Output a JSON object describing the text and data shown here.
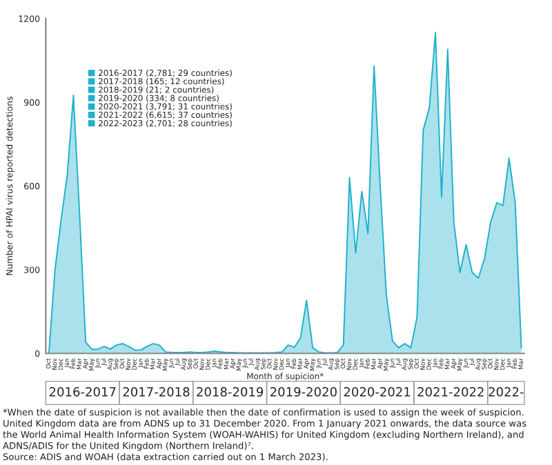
{
  "chart_data": {
    "type": "area",
    "ylabel": "Number of HPAI virus reported detections",
    "xlabel": "Month of supicion*",
    "categories": [
      "Oct",
      "Nov",
      "Dec",
      "Jan",
      "Feb",
      "Mar",
      "Apr",
      "May",
      "Jun",
      "Jul",
      "Aug",
      "Sep",
      "Oct",
      "Nov",
      "Dec",
      "Jan",
      "Feb",
      "Mar",
      "Apr",
      "May",
      "Jun",
      "Jul",
      "Aug",
      "Sep",
      "Oct",
      "Nov",
      "Dec",
      "Jan",
      "Feb",
      "Mar",
      "Apr",
      "May",
      "Jun",
      "Jul",
      "Aug",
      "Sep",
      "Oct",
      "Nov",
      "Dec",
      "Jan",
      "Feb",
      "Mar",
      "Apr",
      "May",
      "Jun",
      "Jul",
      "Aug",
      "Sep",
      "Oct",
      "Nov",
      "Dec",
      "Jan",
      "Feb",
      "Mar",
      "Apr",
      "May",
      "Jun",
      "Jul",
      "Aug",
      "Sep",
      "Oct",
      "Nov",
      "Dec",
      "Jan",
      "Feb",
      "Mar",
      "Apr",
      "May",
      "Jun",
      "Jul",
      "Aug",
      "Sep",
      "Oct",
      "Nov",
      "Dec",
      "Jan",
      "Feb",
      "Mar"
    ],
    "series": [
      {
        "name": "2016-2017 (2,781; 29 countries)",
        "color": "#1fb1cd",
        "values": [
          0,
          300,
          480,
          640,
          925,
          500,
          40,
          15,
          15,
          25,
          15,
          30,
          35,
          null,
          null,
          null,
          null,
          null,
          null,
          null,
          null,
          null,
          null,
          null,
          null,
          null,
          null,
          null,
          null,
          null,
          null,
          null,
          null,
          null,
          null,
          null,
          null,
          null,
          null,
          null,
          null,
          null,
          null,
          null,
          null,
          null,
          null,
          null,
          null,
          null,
          null,
          null,
          null,
          null,
          null,
          null,
          null,
          null,
          null,
          null,
          null,
          null,
          null,
          null,
          null,
          null,
          null,
          null,
          null,
          null,
          null,
          null,
          null,
          null,
          null,
          null,
          null,
          null
        ]
      },
      {
        "name": "2017-2018 (165; 12 countries)",
        "color": "#1fb1cd",
        "values": [
          null,
          null,
          null,
          null,
          null,
          null,
          null,
          null,
          null,
          null,
          null,
          null,
          35,
          25,
          12,
          12,
          25,
          35,
          30,
          5,
          3,
          3,
          3,
          5,
          3,
          null,
          null,
          null,
          null,
          null,
          null,
          null,
          null,
          null,
          null,
          null,
          null,
          null,
          null,
          null,
          null,
          null,
          null,
          null,
          null,
          null,
          null,
          null,
          null,
          null,
          null,
          null,
          null,
          null,
          null,
          null,
          null,
          null,
          null,
          null,
          null,
          null,
          null,
          null,
          null,
          null,
          null,
          null,
          null,
          null,
          null,
          null,
          null,
          null,
          null,
          null,
          null,
          null
        ]
      },
      {
        "name": "2018-2019 (21; 2 countries)",
        "color": "#1fb1cd",
        "values": [
          null,
          null,
          null,
          null,
          null,
          null,
          null,
          null,
          null,
          null,
          null,
          null,
          null,
          null,
          null,
          null,
          null,
          null,
          null,
          null,
          null,
          null,
          null,
          null,
          3,
          3,
          5,
          8,
          5,
          3,
          3,
          2,
          2,
          2,
          2,
          2,
          2,
          null,
          null,
          null,
          null,
          null,
          null,
          null,
          null,
          null,
          null,
          null,
          null,
          null,
          null,
          null,
          null,
          null,
          null,
          null,
          null,
          null,
          null,
          null,
          null,
          null,
          null,
          null,
          null,
          null,
          null,
          null,
          null,
          null,
          null,
          null,
          null,
          null,
          null,
          null,
          null,
          null
        ]
      },
      {
        "name": "2019-2020 (334; 8 countries)",
        "color": "#1fb1cd",
        "values": [
          null,
          null,
          null,
          null,
          null,
          null,
          null,
          null,
          null,
          null,
          null,
          null,
          null,
          null,
          null,
          null,
          null,
          null,
          null,
          null,
          null,
          null,
          null,
          null,
          null,
          null,
          null,
          null,
          null,
          null,
          null,
          null,
          null,
          null,
          null,
          null,
          2,
          3,
          5,
          30,
          22,
          55,
          190,
          20,
          5,
          2,
          2,
          3,
          30,
          null,
          null,
          null,
          null,
          null,
          null,
          null,
          null,
          null,
          null,
          null,
          null,
          null,
          null,
          null,
          null,
          null,
          null,
          null,
          null,
          null,
          null,
          null,
          null,
          null,
          null,
          null,
          null,
          null
        ]
      },
      {
        "name": "2020-2021 (3,791; 31 countries)",
        "color": "#1fb1cd",
        "values": [
          null,
          null,
          null,
          null,
          null,
          null,
          null,
          null,
          null,
          null,
          null,
          null,
          null,
          null,
          null,
          null,
          null,
          null,
          null,
          null,
          null,
          null,
          null,
          null,
          null,
          null,
          null,
          null,
          null,
          null,
          null,
          null,
          null,
          null,
          null,
          null,
          null,
          null,
          null,
          null,
          null,
          null,
          null,
          null,
          null,
          null,
          null,
          null,
          30,
          630,
          360,
          580,
          430,
          1030,
          600,
          210,
          45,
          20,
          35,
          20,
          130,
          null,
          null,
          null,
          null,
          null,
          null,
          null,
          null,
          null,
          null,
          null,
          null,
          null,
          null,
          null,
          null,
          null
        ]
      },
      {
        "name": "2021-2022 (6,615; 37 countries)",
        "color": "#1fb1cd",
        "values": [
          null,
          null,
          null,
          null,
          null,
          null,
          null,
          null,
          null,
          null,
          null,
          null,
          null,
          null,
          null,
          null,
          null,
          null,
          null,
          null,
          null,
          null,
          null,
          null,
          null,
          null,
          null,
          null,
          null,
          null,
          null,
          null,
          null,
          null,
          null,
          null,
          null,
          null,
          null,
          null,
          null,
          null,
          null,
          null,
          null,
          null,
          null,
          null,
          null,
          null,
          null,
          null,
          null,
          null,
          null,
          null,
          null,
          null,
          null,
          null,
          130,
          800,
          880,
          1150,
          560,
          1090,
          470,
          290,
          390,
          290,
          270,
          340,
          470,
          null,
          null,
          null,
          null,
          null
        ]
      },
      {
        "name": "2022-2023 (2,701; 28 countries)",
        "color": "#1fb1cd",
        "values": [
          null,
          null,
          null,
          null,
          null,
          null,
          null,
          null,
          null,
          null,
          null,
          null,
          null,
          null,
          null,
          null,
          null,
          null,
          null,
          null,
          null,
          null,
          null,
          null,
          null,
          null,
          null,
          null,
          null,
          null,
          null,
          null,
          null,
          null,
          null,
          null,
          null,
          null,
          null,
          null,
          null,
          null,
          null,
          null,
          null,
          null,
          null,
          null,
          null,
          null,
          null,
          null,
          null,
          null,
          null,
          null,
          null,
          null,
          null,
          null,
          null,
          null,
          null,
          null,
          null,
          null,
          null,
          null,
          null,
          null,
          null,
          null,
          470,
          540,
          530,
          700,
          540,
          20
        ]
      }
    ],
    "ylim": [
      0,
      1200
    ],
    "yticks": [
      0,
      300,
      600,
      900,
      1200
    ],
    "grid": false,
    "legend": "top left",
    "annotations": [
      "2016-2017",
      "2017-2018",
      "2018-2019",
      "2019-2020",
      "2020-2021",
      "2021-2022",
      "2022-",
      "*When the date of suspicion is not available then the date of confirmation is used to assign the week of suspicion.",
      "United Kingdom data are from ADNS up to 31 December 2020. From 1 January 2021 onwards, the data source was",
      "the World Animal Health Information System (WOAH-WAHIS) for United Kingdom (excluding Northern Ireland), and",
      "ADNS/ADIS for the United Kingdom (Northern Ireland)⁷.",
      "Source: ADIS and WOAH (data extraction carried out on 1 March 2023)."
    ]
  }
}
